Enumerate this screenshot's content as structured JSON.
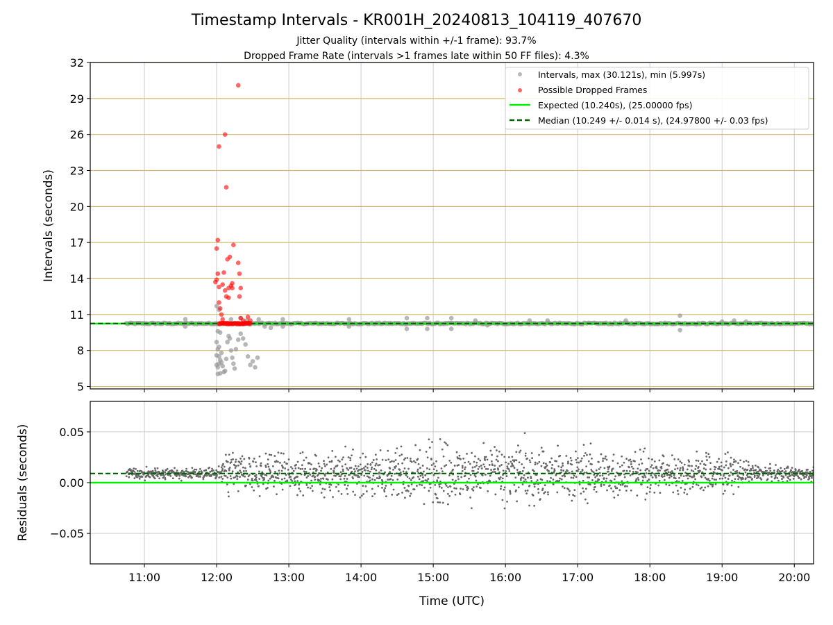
{
  "chart_data": [
    {
      "type": "scatter",
      "title": "Timestamp Intervals - KR001H_20240813_104119_407670",
      "subtitle_lines": [
        "Jitter Quality (intervals within +/-1 frame): 93.7%",
        "Dropped Frame Rate (intervals >1 frames late within 50 FF files): 4.3%"
      ],
      "ylabel": "Intervals (seconds)",
      "x_range": [
        "10:15",
        "20:16"
      ],
      "ylim": [
        4.8,
        32
      ],
      "yticks": [
        "5",
        "8",
        "11",
        "14",
        "17",
        "20",
        "23",
        "26",
        "29",
        "32"
      ],
      "ytick_values": [
        5,
        8,
        11,
        14,
        17,
        20,
        23,
        26,
        29,
        32
      ],
      "horizontal_gridlines_color": "#d4b96a",
      "vertical_gridlines": true,
      "legend_position": "top-right",
      "expected_interval": 10.24,
      "median_interval": 10.249,
      "series": [
        {
          "name": "Intervals, max (30.121s), min (5.997s)",
          "color": "#999999",
          "points": [
            [
              "12:00",
              11.7
            ],
            [
              "12:02",
              11.4
            ],
            [
              "12:01",
              9.6
            ],
            [
              "12:03",
              9.5
            ],
            [
              "12:00",
              8.7
            ],
            [
              "12:02",
              8.3
            ],
            [
              "12:01",
              8.1
            ],
            [
              "12:04",
              7.8
            ],
            [
              "12:00",
              7.6
            ],
            [
              "12:02",
              7.5
            ],
            [
              "12:03",
              7.2
            ],
            [
              "12:00",
              6.8
            ],
            [
              "12:01",
              6.6
            ],
            [
              "12:02",
              6.9
            ],
            [
              "12:04",
              7.0
            ],
            [
              "12:05",
              6.7
            ],
            [
              "12:06",
              6.2
            ],
            [
              "12:07",
              6.3
            ],
            [
              "12:08",
              7.3
            ],
            [
              "12:01",
              6.05
            ],
            [
              "12:03",
              6.1
            ],
            [
              "12:09",
              8.7
            ],
            [
              "12:10",
              9.2
            ],
            [
              "12:11",
              9.0
            ],
            [
              "12:12",
              8.0
            ],
            [
              "12:13",
              7.4
            ],
            [
              "12:14",
              6.9
            ],
            [
              "12:16",
              8.1
            ],
            [
              "12:18",
              8.9
            ],
            [
              "12:20",
              9.4
            ],
            [
              "12:22",
              9.0
            ],
            [
              "12:24",
              8.5
            ],
            [
              "12:26",
              7.5
            ],
            [
              "12:28",
              6.8
            ],
            [
              "12:30",
              7.1
            ],
            [
              "12:32",
              6.6
            ],
            [
              "12:34",
              7.4
            ],
            [
              "12:15",
              6.5
            ],
            [
              "12:12",
              10.6
            ],
            [
              "12:20",
              10.7
            ],
            [
              "12:35",
              10.6
            ],
            [
              "12:40",
              10.0
            ],
            [
              "12:45",
              9.9
            ],
            [
              "12:25",
              10.5
            ],
            [
              "11:34",
              10.6
            ],
            [
              "11:34",
              10.0
            ],
            [
              "12:55",
              10.6
            ],
            [
              "12:55",
              10.0
            ],
            [
              "13:50",
              10.6
            ],
            [
              "13:50",
              10.0
            ],
            [
              "14:38",
              10.7
            ],
            [
              "14:38",
              9.8
            ],
            [
              "14:55",
              10.7
            ],
            [
              "14:55",
              9.8
            ],
            [
              "15:15",
              10.7
            ],
            [
              "15:15",
              9.8
            ],
            [
              "15:35",
              10.5
            ],
            [
              "15:45",
              10.1
            ],
            [
              "16:20",
              10.5
            ],
            [
              "16:35",
              10.5
            ],
            [
              "17:40",
              10.5
            ],
            [
              "18:25",
              10.9
            ],
            [
              "18:25",
              9.7
            ],
            [
              "19:00",
              10.4
            ],
            [
              "19:10",
              10.5
            ],
            [
              "19:20",
              10.4
            ],
            [
              "19:35",
              10.2
            ]
          ]
        },
        {
          "name": "Possible Dropped Frames",
          "color": "#ff0000",
          "points": [
            [
              "12:18",
              30.1
            ],
            [
              "12:07",
              26.0
            ],
            [
              "12:02",
              25.0
            ],
            [
              "12:08",
              21.6
            ],
            [
              "12:01",
              17.2
            ],
            [
              "12:00",
              16.5
            ],
            [
              "12:14",
              16.8
            ],
            [
              "12:18",
              15.3
            ],
            [
              "12:09",
              15.6
            ],
            [
              "12:11",
              15.8
            ],
            [
              "12:19",
              14.4
            ],
            [
              "12:01",
              14.4
            ],
            [
              "12:06",
              14.5
            ],
            [
              "12:00",
              13.9
            ],
            [
              "11:59",
              13.7
            ],
            [
              "12:02",
              13.3
            ],
            [
              "12:05",
              13.5
            ],
            [
              "12:07",
              13.0
            ],
            [
              "12:10",
              13.2
            ],
            [
              "12:12",
              13.4
            ],
            [
              "12:13",
              13.6
            ],
            [
              "12:13",
              13.2
            ],
            [
              "12:20",
              13.2
            ],
            [
              "12:08",
              12.5
            ],
            [
              "12:10",
              12.4
            ],
            [
              "12:19",
              12.5
            ],
            [
              "12:02",
              12.0
            ],
            [
              "12:03",
              11.5
            ],
            [
              "12:04",
              11.0
            ],
            [
              "12:05",
              10.6
            ],
            [
              "12:20",
              10.7
            ],
            [
              "12:26",
              10.8
            ],
            [
              "12:22",
              10.5
            ],
            [
              "12:28",
              10.5
            ]
          ],
          "band": {
            "x_from": "12:02",
            "x_to": "12:28",
            "y": 10.25
          }
        },
        {
          "name": "Expected (10.240s), (25.00000 fps)",
          "color": "#00ee00",
          "style": "solid",
          "y": 10.24
        },
        {
          "name": "Median (10.249 +/- 0.014 s), (24.97800 +/- 0.03 fps)",
          "color": "#006400",
          "style": "dashed",
          "y": 10.249
        }
      ],
      "dense_interval_track": {
        "x_from": "10:45",
        "x_to": "20:16",
        "y": 10.25
      }
    },
    {
      "type": "scatter",
      "xlabel": "Time (UTC)",
      "ylabel": "Residuals (seconds)",
      "ylim": [
        -0.08,
        0.08
      ],
      "yticks": [
        "−0.05",
        "0.00",
        "0.05"
      ],
      "ytick_values": [
        -0.05,
        0.0,
        0.05
      ],
      "xticks": [
        "11:00",
        "12:00",
        "13:00",
        "14:00",
        "15:00",
        "16:00",
        "17:00",
        "18:00",
        "19:00",
        "20:00"
      ],
      "expected_residual": 0.0,
      "median_residual": 0.009,
      "point_color": "#666666",
      "expected_color": "#00ee00",
      "median_color": "#006400",
      "spread_profile": [
        [
          "10:45",
          0.004
        ],
        [
          "12:00",
          0.004
        ],
        [
          "12:10",
          0.018
        ],
        [
          "13:00",
          0.014
        ],
        [
          "14:00",
          0.018
        ],
        [
          "15:00",
          0.022
        ],
        [
          "16:00",
          0.026
        ],
        [
          "17:00",
          0.02
        ],
        [
          "18:00",
          0.016
        ],
        [
          "19:00",
          0.016
        ],
        [
          "19:30",
          0.006
        ],
        [
          "20:16",
          0.005
        ]
      ]
    }
  ]
}
